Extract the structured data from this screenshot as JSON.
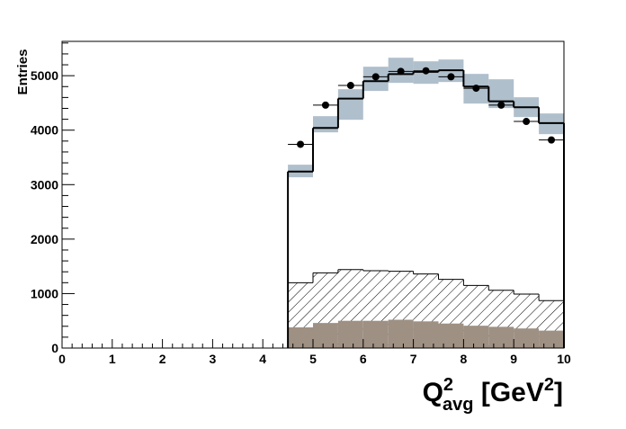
{
  "chart_data": {
    "type": "histogram",
    "y_label": "Entries",
    "x_label": {
      "base": "Q",
      "sup": "2",
      "sub": "avg",
      "unit": " [GeV",
      "unit_sup": "2",
      "close": "]"
    },
    "xlim": [
      0,
      10
    ],
    "xticks": [
      0,
      1,
      2,
      3,
      4,
      5,
      6,
      7,
      8,
      9,
      10
    ],
    "ylim": [
      0,
      5630
    ],
    "yticks": [
      0,
      1000,
      2000,
      3000,
      4000,
      5000
    ],
    "bins": [
      4.5,
      5,
      5.5,
      6,
      6.5,
      7,
      7.5,
      8,
      8.5,
      9,
      9.5,
      10
    ],
    "band": {
      "color": "#b0bfcc",
      "lower": [
        3135,
        3960,
        4191,
        4720,
        4868,
        4851,
        4884,
        4488,
        4406,
        4241,
        3927
      ],
      "upper": [
        3366,
        4257,
        4752,
        5165,
        5330,
        5264,
        5297,
        5033,
        4934,
        4604,
        4307
      ]
    },
    "total": {
      "color": "#000000",
      "values": [
        3240,
        4040,
        4580,
        4900,
        5030,
        5070,
        5100,
        4800,
        4530,
        4420,
        4130
      ]
    },
    "hatched": {
      "color": "#000000",
      "values": [
        1200,
        1380,
        1440,
        1420,
        1410,
        1360,
        1260,
        1150,
        1060,
        990,
        870
      ]
    },
    "filled": {
      "color": "#9e9083",
      "values": [
        380,
        460,
        500,
        500,
        520,
        490,
        450,
        410,
        390,
        360,
        320
      ]
    },
    "points": {
      "color": "#000000",
      "x": [
        4.75,
        5.25,
        5.75,
        6.25,
        6.75,
        7.25,
        7.75,
        8.25,
        8.75,
        9.25,
        9.75
      ],
      "values": [
        3740,
        4460,
        4820,
        4980,
        5080,
        5090,
        4980,
        4770,
        4460,
        4160,
        3820
      ]
    }
  }
}
